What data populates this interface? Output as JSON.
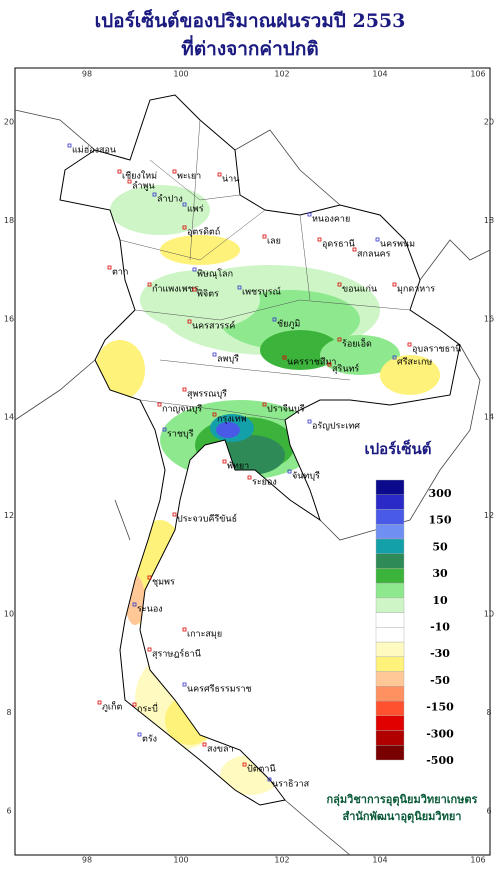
{
  "title": {
    "line1": "เปอร์เซ็นต์ของปริมาณฝนรวมปี 2553",
    "line2": "ที่ต่างจากค่าปกติ"
  },
  "longitude_ticks": [
    "98",
    "100",
    "102",
    "104",
    "106"
  ],
  "latitude_ticks": [
    "20",
    "18",
    "16",
    "14",
    "12",
    "10",
    "8",
    "6"
  ],
  "provinces": [
    "แม่ฮ่องสอน",
    "เชียงใหม่",
    "ลำพูน",
    "ลำปาง",
    "พะเยา",
    "น่าน",
    "แพร่",
    "ตาก",
    "อุตรดิตถ์",
    "พิษณุโลก",
    "กำแพงเพชร",
    "พิจิตร",
    "เพชรบูรณ์",
    "นครสวรรค์",
    "เลย",
    "หนองคาย",
    "อุดรธานี",
    "สกลนคร",
    "นครพนม",
    "มุกดาหาร",
    "ขอนแก่น",
    "ชัยภูมิ",
    "ร้อยเอ็ด",
    "อุบลราชธานี",
    "ลพบุรี",
    "นครราชสีมา",
    "สุรินทร์",
    "ศรีสะเกษ",
    "กาญจนบุรี",
    "สุพรรณบุรี",
    "ราชบุรี",
    "กรุงเทพ",
    "ปราจีนบุรี",
    "อรัญประเทศ",
    "พัทยา",
    "ระยอง",
    "จันทบุรี",
    "ประจวบคีรีขันธ์",
    "ชุมพร",
    "ระนอง",
    "เกาะสมุย",
    "สุราษฎร์ธานี",
    "นครศรีธรรมราช",
    "กระบี่",
    "ภูเก็ต",
    "ตรัง",
    "สงขลา",
    "ปัตตานี",
    "นราธิวาส"
  ],
  "legend": {
    "title": "เปอร์เซ็นต์",
    "colors": [
      "#0a0a8c",
      "#2a2ac8",
      "#4a5ae8",
      "#6f8ff2",
      "#14a0a8",
      "#2e8b57",
      "#3cb43c",
      "#8ee88e",
      "#cdf5c6",
      "#ffffff",
      "#ffffff",
      "#fffac0",
      "#fff27a",
      "#ffc896",
      "#ff9060",
      "#ff5030",
      "#e00000",
      "#b00000",
      "#780000"
    ],
    "labels": [
      "300",
      "150",
      "50",
      "30",
      "10",
      "-10",
      "-30",
      "-50",
      "-150",
      "-300",
      "-500"
    ]
  },
  "credits": [
    "กลุ่มวิชาการอุตุนิยมวิทยาเกษตร",
    "สำนักพัฒนาอุตุนิยมวิทยา"
  ]
}
